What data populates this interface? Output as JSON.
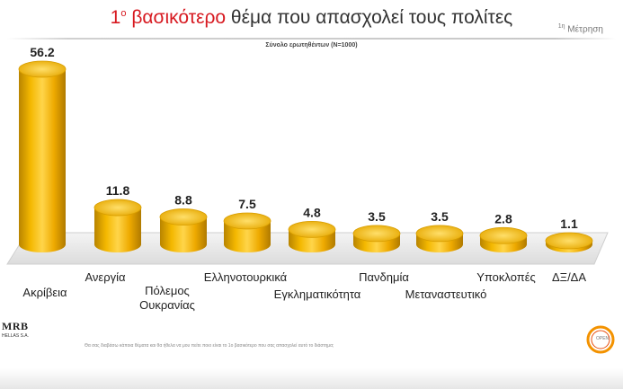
{
  "header": {
    "title_prefix": "1",
    "title_sup": "ο",
    "title_accent": "βασικότερο",
    "title_rest": " θέμα που απασχολεί τους πολίτες",
    "measure_sup": "1η",
    "measure_label": "Μέτρηση",
    "subtitle": "Σύνολο ερωτηθέντων (Ν=1000)"
  },
  "footer": {
    "mrb_logo": "MRB",
    "mrb_sub": "HELLAS S.A.",
    "note": "Θα σας διαβάσω κάποια θέματα και θα ήθελα να μου πείτε ποιο είναι το 1ο βασικότερο που σας απασχολεί αυτό το διάστημα;",
    "open_logo": "OPEN"
  },
  "chart_data": {
    "type": "bar",
    "categories": [
      "Ακρίβεια",
      "Ανεργία",
      "Πόλεμος Ουκρανίας",
      "Ελληνοτουρκικά",
      "Εγκληματικότητα",
      "Πανδημία",
      "Μεταναστευτικό",
      "Υποκλοπές",
      "ΔΞ/ΔΑ"
    ],
    "values": [
      56.2,
      11.8,
      8.8,
      7.5,
      4.8,
      3.5,
      3.5,
      2.8,
      1.1
    ],
    "title": "1ο βασικότερο θέμα που απασχολεί τους πολίτες",
    "subtitle": "Σύνολο ερωτηθέντων (Ν=1000)",
    "colors": {
      "bar": "#f2b200",
      "bar_dark": "#b88400",
      "bar_light": "#ffd24a",
      "floor": "#ececec"
    }
  }
}
